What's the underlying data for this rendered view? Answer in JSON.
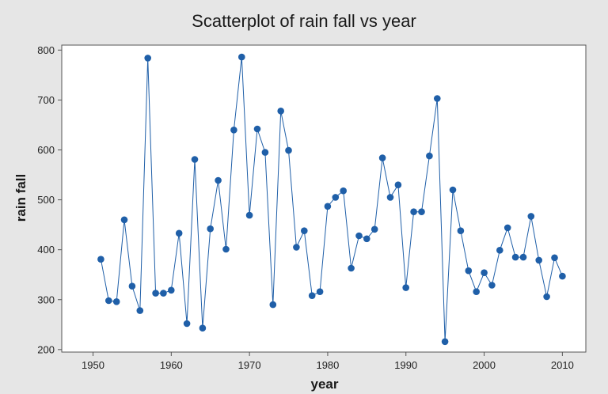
{
  "colors": {
    "background": "#e6e6e6",
    "plot_area": "#ffffff",
    "series": "#1f5fa8",
    "axis": "#555555"
  },
  "chart_data": {
    "type": "scatter",
    "title": "Scatterplot of rain fall vs year",
    "xlabel": "year",
    "ylabel": "rain fall",
    "xlim": [
      1946,
      2013
    ],
    "ylim": [
      195,
      810
    ],
    "xticks": [
      1950,
      1960,
      1970,
      1980,
      1990,
      2000,
      2010
    ],
    "yticks": [
      200,
      300,
      400,
      500,
      600,
      700,
      800
    ],
    "connect_points": true,
    "grid": false,
    "series": [
      {
        "x": [
          1951,
          1952,
          1953,
          1954,
          1955,
          1956,
          1957,
          1958,
          1959,
          1960,
          1961,
          1962,
          1963,
          1964,
          1965,
          1966,
          1967,
          1968,
          1969,
          1970,
          1971,
          1972,
          1973,
          1974,
          1975,
          1976,
          1977,
          1978,
          1979,
          1980,
          1981,
          1982,
          1983,
          1984,
          1985,
          1986,
          1987,
          1988,
          1989,
          1990,
          1991,
          1992,
          1993,
          1994,
          1995,
          1996,
          1997,
          1998,
          1999,
          2000,
          2001,
          2002,
          2003,
          2004,
          2005,
          2006,
          2007,
          2008,
          2009,
          2010
        ],
        "y": [
          381,
          298,
          296,
          460,
          327,
          278,
          784,
          313,
          313,
          319,
          433,
          252,
          581,
          243,
          442,
          539,
          401,
          640,
          786,
          469,
          642,
          595,
          290,
          678,
          599,
          405,
          438,
          308,
          316,
          487,
          505,
          518,
          363,
          428,
          422,
          441,
          584,
          505,
          530,
          324,
          476,
          476,
          588,
          703,
          216,
          520,
          438,
          358,
          316,
          354,
          329,
          399,
          444,
          385,
          385,
          467,
          379,
          306,
          384,
          347
        ]
      }
    ]
  }
}
